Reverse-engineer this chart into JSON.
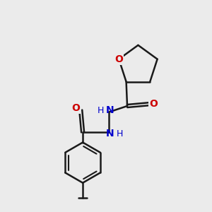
{
  "bg_color": "#ebebeb",
  "bond_color": "#1a1a1a",
  "oxygen_color": "#cc0000",
  "nitrogen_color": "#0000cc",
  "line_width": 1.8,
  "figsize": [
    3.0,
    3.0
  ],
  "dpi": 100,
  "xlim": [
    0,
    10
  ],
  "ylim": [
    0,
    10
  ]
}
